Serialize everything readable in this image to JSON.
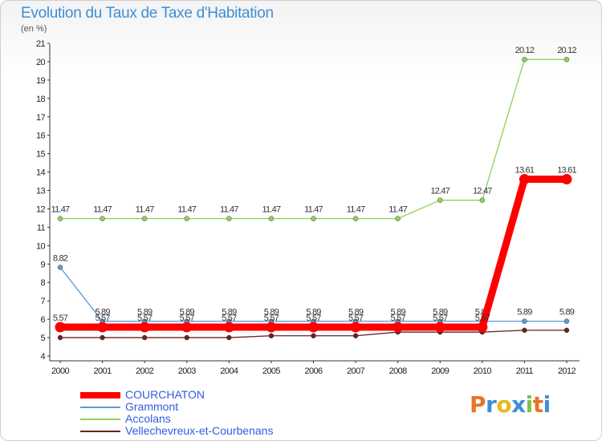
{
  "chart_data": {
    "type": "line",
    "title": "Evolution du Taux de Taxe d'Habitation",
    "subtitle": "(en %)",
    "categories": [
      "2000",
      "2001",
      "2002",
      "2003",
      "2004",
      "2005",
      "2006",
      "2007",
      "2008",
      "2009",
      "2010",
      "2011",
      "2012"
    ],
    "ylim": [
      4,
      21
    ],
    "yticks": [
      4,
      5,
      6,
      7,
      8,
      9,
      10,
      11,
      12,
      13,
      14,
      15,
      16,
      17,
      18,
      19,
      20,
      21
    ],
    "grid": false,
    "legend_position": "bottom-left",
    "series": [
      {
        "name": "Vellechevreux-et-Courbenans",
        "color": "#6b2020",
        "values": [
          5.0,
          5.0,
          5.0,
          5.0,
          5.0,
          5.1,
          5.1,
          5.1,
          5.3,
          5.3,
          5.3,
          5.4,
          5.4
        ],
        "labels": []
      },
      {
        "name": "Accolans",
        "color": "#8fd15a",
        "values": [
          11.47,
          11.47,
          11.47,
          11.47,
          11.47,
          11.47,
          11.47,
          11.47,
          11.47,
          12.47,
          12.47,
          20.12,
          20.12
        ],
        "labels": [
          "11.47",
          "11.47",
          "11.47",
          "11.47",
          "11.47",
          "11.47",
          "11.47",
          "11.47",
          "11.47",
          "12.47",
          "12.47",
          "20.12",
          "20.12"
        ]
      },
      {
        "name": "Grammont",
        "color": "#5b9bd5",
        "values": [
          8.82,
          5.89,
          5.89,
          5.89,
          5.89,
          5.89,
          5.89,
          5.89,
          5.89,
          5.89,
          5.89,
          5.89,
          5.89
        ],
        "labels": [
          "8.82",
          "5.89",
          "5.89",
          "5.89",
          "5.89",
          "5.89",
          "5.89",
          "5.89",
          "5.89",
          "5.89",
          "5.89",
          "5.89",
          "5.89"
        ]
      },
      {
        "name": "COURCHATON",
        "color": "#ff0000",
        "values": [
          5.57,
          5.57,
          5.57,
          5.57,
          5.57,
          5.57,
          5.57,
          5.57,
          5.57,
          5.57,
          5.57,
          13.61,
          13.61
        ],
        "labels": [
          "5.57",
          "5.57",
          "5.57",
          "5.57",
          "5.57",
          "5.57",
          "5.57",
          "5.57",
          "5.57",
          "5.57",
          "5.57",
          "13.61",
          "13.61"
        ]
      }
    ]
  },
  "legend": {
    "items": [
      {
        "label": "COURCHATON",
        "color": "#ff0000"
      },
      {
        "label": "Grammont",
        "color": "#5b9bd5"
      },
      {
        "label": "Accolans",
        "color": "#8fd15a"
      },
      {
        "label": "Vellechevreux-et-Courbenans",
        "color": "#6b2020"
      }
    ]
  },
  "logo": {
    "text": "Proxiti",
    "colors": [
      "#e8732a",
      "#3d8fd6",
      "#e8b820",
      "#3d8fd6",
      "#7cc242",
      "#e8732a",
      "#3d8fd6"
    ]
  }
}
